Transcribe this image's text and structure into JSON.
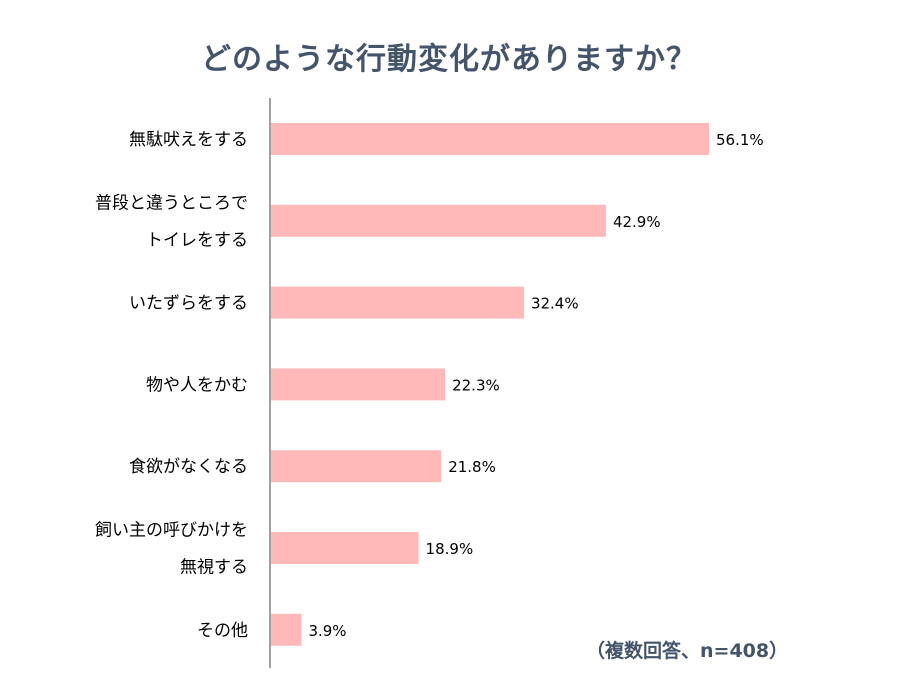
{
  "chart_data": {
    "type": "bar",
    "orientation": "horizontal",
    "title": "どのような行動変化がありますか？",
    "note": "（複数回答、n=408）",
    "categories": [
      [
        "無駄吠えをする"
      ],
      [
        "普段と違うところで",
        "トイレをする"
      ],
      [
        "いたずらをする"
      ],
      [
        "物や人をかむ"
      ],
      [
        "食欲がなくなる"
      ],
      [
        "飼い主の呼びかけを",
        "無視する"
      ],
      [
        "その他"
      ]
    ],
    "values": [
      56.1,
      42.9,
      32.4,
      22.3,
      21.8,
      18.9,
      3.9
    ],
    "value_labels": [
      "56.1%",
      "42.9%",
      "32.4%",
      "22.3%",
      "21.8%",
      "18.9%",
      "3.9%"
    ],
    "unit": "%",
    "xlim": [
      0,
      60
    ],
    "bar_color": "#ffb9b9",
    "axis_color": "#808080",
    "title_color": "#44546a",
    "grid": false,
    "legend": "none"
  }
}
